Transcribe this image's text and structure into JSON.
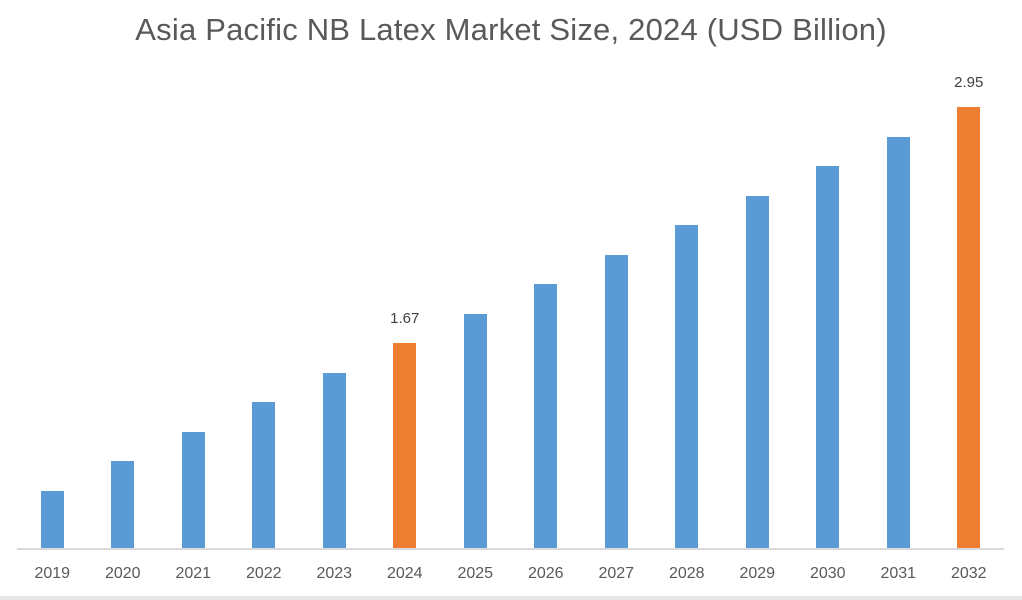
{
  "chart_data": {
    "type": "bar",
    "title": "Asia Pacific NB Latex Market Size, 2024 (USD Billion)",
    "xlabel": "",
    "ylabel": "",
    "categories": [
      "2019",
      "2020",
      "2021",
      "2022",
      "2023",
      "2024",
      "2025",
      "2026",
      "2027",
      "2028",
      "2029",
      "2030",
      "2031",
      "2032"
    ],
    "values": [
      0.87,
      1.03,
      1.19,
      1.35,
      1.51,
      1.67,
      1.83,
      1.99,
      2.15,
      2.31,
      2.47,
      2.63,
      2.79,
      2.95
    ],
    "data_labels": {
      "2024": "1.67",
      "2032": "2.95"
    },
    "highlighted": [
      "2024",
      "2032"
    ],
    "colors": {
      "default": "#5b9bd5",
      "highlight": "#ed7d31"
    },
    "ylim": [
      0.56,
      3.1
    ],
    "grid": false,
    "legend": "none"
  },
  "labels": {
    "title": "Asia Pacific NB Latex Market Size, 2024 (USD Billion)"
  }
}
